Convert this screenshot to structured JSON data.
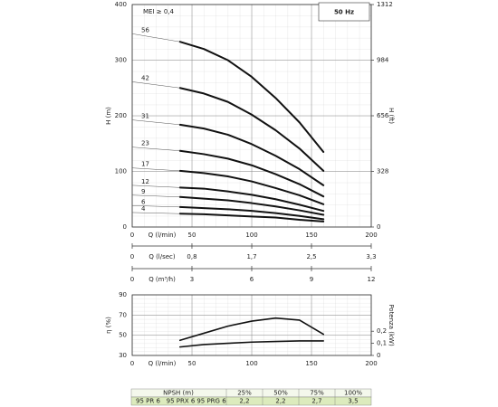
{
  "chart_data": [
    {
      "type": "line",
      "annotations": [
        "MEI ≥ 0,4"
      ],
      "badge": "50 Hz",
      "x_label": "Q (l/min)",
      "y_label": "H (m)",
      "y2_label": "H (ft)",
      "x": [
        40,
        60,
        80,
        100,
        120,
        140,
        160
      ],
      "xlim": [
        0,
        200
      ],
      "xticks": [
        0,
        50,
        100,
        150,
        200
      ],
      "ylim": [
        0,
        400
      ],
      "yticks": [
        0,
        100,
        200,
        300,
        400
      ],
      "y2lim": [
        0,
        1312
      ],
      "y2ticks": [
        0,
        328,
        656,
        984,
        1312
      ],
      "grid": true,
      "color": "#111",
      "series": [
        {
          "name": "56",
          "values": [
            333,
            320,
            300,
            270,
            232,
            188,
            135
          ]
        },
        {
          "name": "42",
          "values": [
            250,
            240,
            225,
            202,
            174,
            141,
            101
          ]
        },
        {
          "name": "31",
          "values": [
            184,
            177,
            166,
            149,
            128,
            104,
            75
          ]
        },
        {
          "name": "23",
          "values": [
            137,
            131,
            123,
            111,
            95,
            77,
            55
          ]
        },
        {
          "name": "17",
          "values": [
            101,
            97,
            91,
            82,
            70,
            57,
            41
          ]
        },
        {
          "name": "12",
          "values": [
            71,
            69,
            64,
            58,
            50,
            40,
            29
          ]
        },
        {
          "name": "9",
          "values": [
            54,
            51,
            48,
            43,
            37,
            30,
            22
          ]
        },
        {
          "name": "6",
          "values": [
            36,
            34,
            32,
            29,
            25,
            20,
            14
          ]
        },
        {
          "name": "4",
          "values": [
            24,
            23,
            21,
            19,
            17,
            13,
            10
          ]
        }
      ]
    },
    {
      "type": "axis",
      "x_label": "Q (l/sec)",
      "xlim": [
        0,
        3.333
      ],
      "xticks": [
        0,
        {
          "value": 0.833,
          "label": "0,8"
        },
        {
          "value": 1.667,
          "label": "1,7"
        },
        {
          "value": 2.5,
          "label": "2,5"
        },
        {
          "value": 3.333,
          "label": "3,3"
        }
      ]
    },
    {
      "type": "axis",
      "x_label": "Q (m³/h)",
      "xlim": [
        0,
        12
      ],
      "xticks": [
        0,
        3,
        6,
        9,
        12
      ]
    },
    {
      "type": "line",
      "x_label": "Q (l/min)",
      "y_label": "η (%)",
      "y2_label": "Potenza (kW)",
      "x": [
        40,
        60,
        80,
        100,
        120,
        140,
        160
      ],
      "xlim": [
        0,
        200
      ],
      "xticks": [
        0,
        50,
        100,
        150,
        200
      ],
      "ylim": [
        30,
        90
      ],
      "yticks": [
        30,
        50,
        70,
        90
      ],
      "y2lim": [
        0,
        0.5
      ],
      "y2ticks": [
        0,
        {
          "value": 0.1,
          "label": "0,1"
        },
        {
          "value": 0.2,
          "label": "0,2"
        }
      ],
      "grid": true,
      "color": "#111",
      "series": [
        {
          "values": [
            45,
            52,
            59,
            64,
            67,
            65,
            51
          ]
        },
        {
          "axis": "y2",
          "values": [
            0.07,
            0.09,
            0.1,
            0.11,
            0.115,
            0.12,
            0.12
          ]
        }
      ]
    }
  ],
  "table": {
    "header_label": "NPSH (m)",
    "columns": [
      "25%",
      "50%",
      "75%",
      "100%"
    ],
    "models": [
      "95 PR 6",
      "95 PRX 6",
      "95 PRG 6"
    ],
    "values": [
      "2,2",
      "2,2",
      "2,7",
      "3,5"
    ]
  }
}
